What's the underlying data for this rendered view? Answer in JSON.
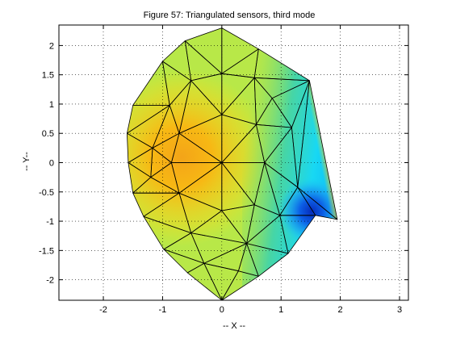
{
  "chart_data": {
    "type": "other",
    "title": "Figure 57: Triangulated sensors, third mode",
    "xlabel": "-- X --",
    "ylabel": "-- Y--",
    "xlim": [
      -2.75,
      3.15
    ],
    "ylim": [
      -2.35,
      2.35
    ],
    "xticks": [
      -2,
      -1,
      0,
      1,
      2,
      3
    ],
    "yticks": [
      -2,
      -1.5,
      -1,
      -0.5,
      0,
      0.5,
      1,
      1.5,
      2
    ],
    "grid": true,
    "colormap": "jet",
    "nodes": [
      [
        0,
        2.3
      ],
      [
        -0.62,
        2.08
      ],
      [
        0.62,
        1.94
      ],
      [
        -1.0,
        1.73
      ],
      [
        1.48,
        1.4
      ],
      [
        -1.5,
        0.98
      ],
      [
        -1.6,
        0.5
      ],
      [
        -1.58,
        0.0
      ],
      [
        -1.5,
        -0.52
      ],
      [
        -1.32,
        -0.92
      ],
      [
        -0.98,
        -1.48
      ],
      [
        -0.58,
        -1.88
      ],
      [
        0,
        -2.35
      ],
      [
        0.62,
        -1.94
      ],
      [
        1.12,
        -1.55
      ],
      [
        1.58,
        -0.9
      ],
      [
        1.95,
        -0.97
      ],
      [
        0,
        1.52
      ],
      [
        -0.52,
        1.4
      ],
      [
        0.55,
        1.45
      ],
      [
        -0.88,
        0.98
      ],
      [
        0.85,
        1.1
      ],
      [
        0,
        0.82
      ],
      [
        -0.72,
        0.5
      ],
      [
        0.58,
        0.65
      ],
      [
        -0.85,
        0.0
      ],
      [
        -1.17,
        0.25
      ],
      [
        -1.2,
        -0.25
      ],
      [
        0,
        0
      ],
      [
        0.72,
        0.0
      ],
      [
        1.18,
        0.6
      ],
      [
        1.28,
        -0.42
      ],
      [
        -0.72,
        -0.52
      ],
      [
        0.55,
        -0.72
      ],
      [
        0,
        -0.82
      ],
      [
        -0.52,
        -1.2
      ],
      [
        0.42,
        -1.38
      ],
      [
        -0.3,
        -1.72
      ],
      [
        0.28,
        -1.85
      ],
      [
        0.98,
        -0.9
      ]
    ],
    "triangles": [
      [
        0,
        1,
        17
      ],
      [
        0,
        17,
        2
      ],
      [
        1,
        3,
        18
      ],
      [
        1,
        18,
        17
      ],
      [
        2,
        17,
        19
      ],
      [
        2,
        19,
        4
      ],
      [
        3,
        5,
        20
      ],
      [
        3,
        20,
        18
      ],
      [
        4,
        19,
        21
      ],
      [
        4,
        21,
        30
      ],
      [
        17,
        18,
        22
      ],
      [
        17,
        22,
        19
      ],
      [
        18,
        20,
        23
      ],
      [
        18,
        23,
        22
      ],
      [
        19,
        22,
        24
      ],
      [
        19,
        24,
        21
      ],
      [
        20,
        5,
        6
      ],
      [
        20,
        6,
        26
      ],
      [
        20,
        26,
        23
      ],
      [
        21,
        24,
        30
      ],
      [
        22,
        23,
        28
      ],
      [
        22,
        28,
        24
      ],
      [
        23,
        26,
        25
      ],
      [
        23,
        25,
        28
      ],
      [
        6,
        7,
        26
      ],
      [
        26,
        7,
        27
      ],
      [
        26,
        27,
        25
      ],
      [
        7,
        8,
        27
      ],
      [
        24,
        28,
        29
      ],
      [
        24,
        29,
        30
      ],
      [
        27,
        8,
        32
      ],
      [
        27,
        32,
        25
      ],
      [
        25,
        32,
        28
      ],
      [
        8,
        9,
        32
      ],
      [
        28,
        32,
        34
      ],
      [
        28,
        34,
        33
      ],
      [
        28,
        33,
        29
      ],
      [
        30,
        29,
        31
      ],
      [
        30,
        31,
        4
      ],
      [
        4,
        31,
        16
      ],
      [
        29,
        33,
        39
      ],
      [
        29,
        39,
        31
      ],
      [
        31,
        39,
        15
      ],
      [
        31,
        15,
        16
      ],
      [
        9,
        10,
        35
      ],
      [
        9,
        35,
        32
      ],
      [
        32,
        35,
        34
      ],
      [
        34,
        35,
        36
      ],
      [
        34,
        36,
        33
      ],
      [
        33,
        36,
        39
      ],
      [
        39,
        36,
        14
      ],
      [
        39,
        14,
        15
      ],
      [
        10,
        11,
        37
      ],
      [
        10,
        37,
        35
      ],
      [
        35,
        37,
        36
      ],
      [
        36,
        37,
        38
      ],
      [
        36,
        38,
        13
      ],
      [
        36,
        13,
        14
      ],
      [
        11,
        12,
        37
      ],
      [
        37,
        12,
        38
      ],
      [
        38,
        12,
        13
      ]
    ]
  }
}
